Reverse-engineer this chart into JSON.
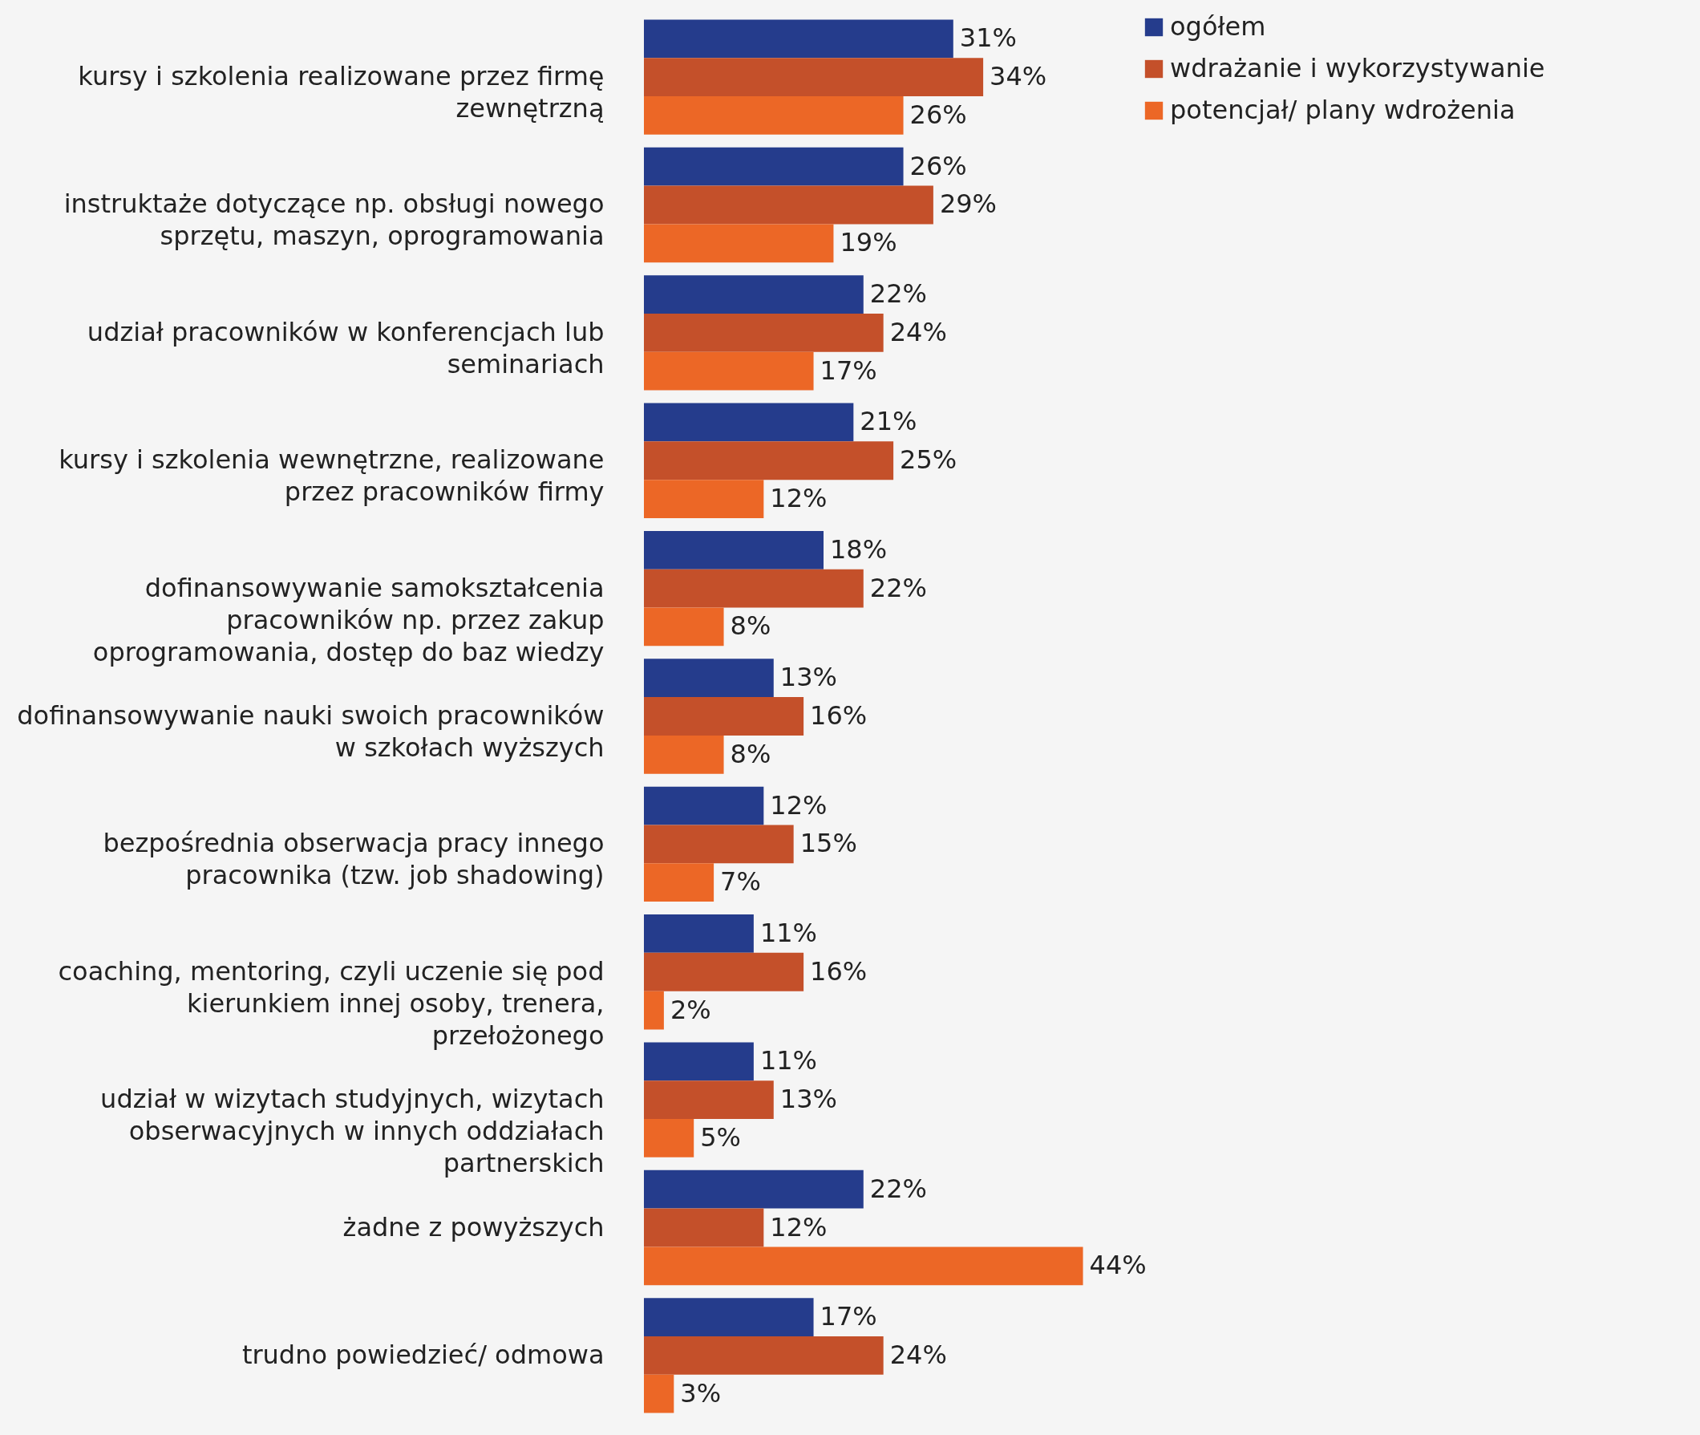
{
  "chart_data": {
    "type": "bar",
    "orientation": "horizontal",
    "legend": "right",
    "tick_labels": "y",
    "categories": [
      "kursy i szkolenia realizowane przez firmę zewnętrzną",
      "instruktaże dotyczące np. obsługi nowego sprzętu, maszyn, oprogramowania",
      "udział pracowników w konferencjach lub seminariach",
      "kursy i szkolenia wewnętrzne, realizowane przez pracowników firmy",
      "dofinansowywanie samokształcenia pracowników np. przez zakup oprogramowania, dostęp do baz wiedzy",
      "dofinansowywanie nauki swoich pracowników w szkołach wyższych",
      "bezpośrednia obserwacja pracy innego pracownika (tzw. job shadowing)",
      "coaching, mentoring, czyli uczenie się pod kierunkiem innej osoby, trenera, przełożonego",
      "udział w wizytach studyjnych, wizytach obserwacyjnych w innych oddziałach partnerskich",
      "żadne z powyższych",
      "trudno powiedzieć/ odmowa"
    ],
    "series": [
      {
        "name": "ogółem",
        "color": "#253c8c",
        "values": [
          31,
          26,
          22,
          21,
          18,
          13,
          12,
          11,
          11,
          22,
          17
        ],
        "value_labels": [
          "31%",
          "26%",
          "22%",
          "21%",
          "18%",
          "13%",
          "12%",
          "11%",
          "11%",
          "22%",
          "17%"
        ]
      },
      {
        "name": "wdrażanie i wykorzystywanie",
        "color": "#c4502a",
        "values": [
          34,
          29,
          24,
          25,
          22,
          16,
          15,
          16,
          13,
          12,
          24
        ],
        "value_labels": [
          "34%",
          "29%",
          "24%",
          "25%",
          "22%",
          "16%",
          "15%",
          "16%",
          "13%",
          "12%",
          "24%"
        ]
      },
      {
        "name": "potencjał/ plany wdrożenia",
        "color": "#ec6726",
        "values": [
          26,
          19,
          17,
          12,
          8,
          8,
          7,
          2,
          5,
          44,
          3
        ],
        "value_labels": [
          "26%",
          "19%",
          "17%",
          "12%",
          "8%",
          "8%",
          "7%",
          "2%",
          "5%",
          "44%",
          "3%"
        ]
      }
    ]
  }
}
